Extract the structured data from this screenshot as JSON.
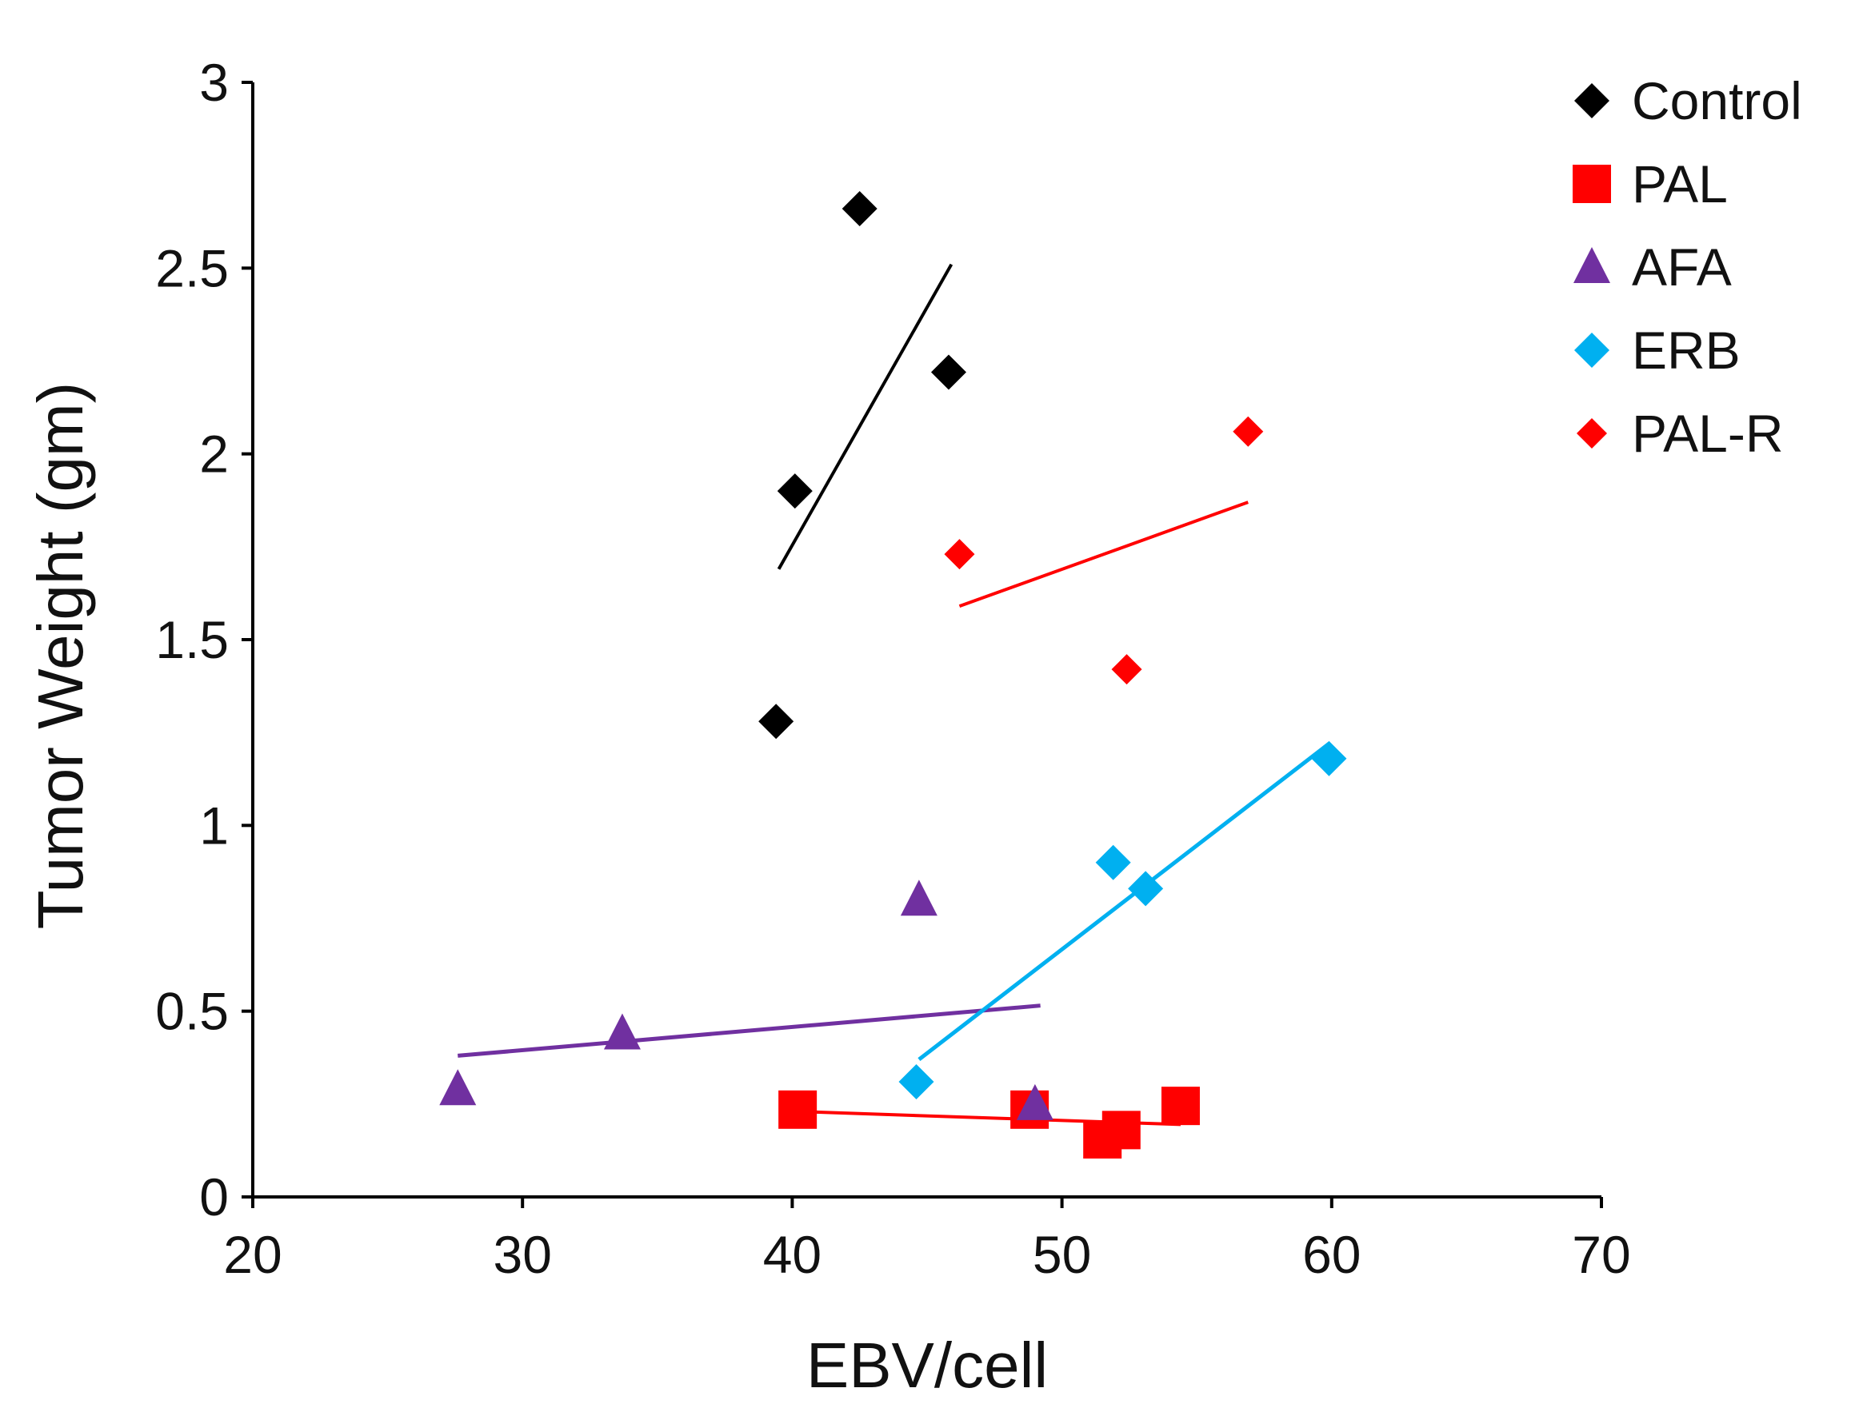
{
  "chart_data": {
    "type": "scatter",
    "title": "",
    "xlabel": "EBV/cell",
    "ylabel": "Tumor Weight (gm)",
    "xlim": [
      20,
      70
    ],
    "ylim": [
      0,
      3
    ],
    "xticks": [
      20,
      30,
      40,
      50,
      60,
      70
    ],
    "yticks": [
      0,
      0.5,
      1,
      1.5,
      2,
      2.5,
      3
    ],
    "xtick_labels": [
      "20",
      "30",
      "40",
      "50",
      "60",
      "70"
    ],
    "ytick_labels": [
      "0",
      "0.5",
      "1",
      "1.5",
      "2",
      "2.5",
      "3"
    ],
    "grid": false,
    "legend_position": "top-right",
    "series": [
      {
        "name": "Control",
        "marker": "diamond",
        "color": "#000000",
        "points": [
          [
            39.4,
            1.28
          ],
          [
            40.1,
            1.9
          ],
          [
            42.5,
            2.66
          ],
          [
            45.8,
            2.22
          ]
        ],
        "trendline": [
          [
            39.5,
            1.69
          ],
          [
            45.9,
            2.51
          ]
        ]
      },
      {
        "name": "PAL",
        "marker": "square",
        "color": "#ff0000",
        "points": [
          [
            40.2,
            0.235
          ],
          [
            48.8,
            0.235
          ],
          [
            51.5,
            0.155
          ],
          [
            52.2,
            0.18
          ],
          [
            54.4,
            0.245
          ]
        ],
        "trendline": [
          [
            40.2,
            0.23
          ],
          [
            54.4,
            0.195
          ]
        ]
      },
      {
        "name": "AFA",
        "marker": "triangle",
        "color": "#7030a0",
        "points": [
          [
            27.6,
            0.29
          ],
          [
            33.7,
            0.44
          ],
          [
            44.7,
            0.8
          ],
          [
            49.0,
            0.25
          ]
        ],
        "trendline": [
          [
            27.6,
            0.38
          ],
          [
            49.2,
            0.515
          ]
        ]
      },
      {
        "name": "ERB",
        "marker": "diamond",
        "color": "#00b0f0",
        "points": [
          [
            44.6,
            0.31
          ],
          [
            51.9,
            0.9
          ],
          [
            53.1,
            0.83
          ],
          [
            59.9,
            1.18
          ]
        ],
        "trendline": [
          [
            44.7,
            0.37
          ],
          [
            59.9,
            1.22
          ]
        ]
      },
      {
        "name": "PAL-R",
        "marker": "diamond-small",
        "color": "#ff0000",
        "points": [
          [
            46.2,
            1.73
          ],
          [
            52.4,
            1.42
          ],
          [
            56.9,
            2.06
          ]
        ],
        "trendline": [
          [
            46.2,
            1.59
          ],
          [
            56.9,
            1.87
          ]
        ]
      }
    ]
  }
}
